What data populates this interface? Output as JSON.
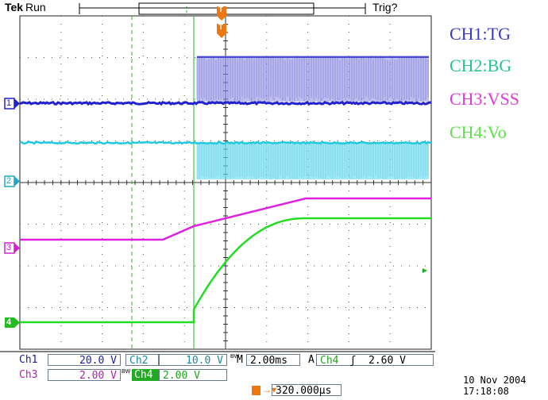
{
  "header": {
    "brand": "Tek",
    "status": "Run",
    "trigger_status": "Trig?"
  },
  "legend": [
    {
      "label": "CH1:TG",
      "color": "#3a3ac8"
    },
    {
      "label": "CH2:BG",
      "color": "#22c88a"
    },
    {
      "label": "CH3:VSS",
      "color": "#e03ad8"
    },
    {
      "label": "CH4:Vo",
      "color": "#5ee04a"
    }
  ],
  "markers": {
    "ch1": "1",
    "ch2": "2",
    "ch3": "3",
    "ch4": "4",
    "trigger": "T"
  },
  "colors": {
    "ch1": "#2222cc",
    "ch2": "#22c8e0",
    "ch3": "#e020e0",
    "ch4": "#22dd22",
    "grid": "#222222",
    "cursor": "#22bb22",
    "trigger": "#ee7711"
  },
  "readout": {
    "ch1_label": "Ch1",
    "ch1_scale": "20.0 V",
    "ch2_label": "Ch2",
    "ch2_scale": "10.0 V",
    "ch3_label": "Ch3",
    "ch3_scale": "2.00 V",
    "ch4_label": "Ch4",
    "ch4_scale": "2.00 V",
    "bw_mark": "BW",
    "timebase_label": "M",
    "timebase": "2.00ms",
    "trigger_mode": "A",
    "trigger_source": "Ch4",
    "trigger_slope": "ʃ",
    "trigger_level": "2.60 V",
    "trigger_position": "320.000µs",
    "date": "10 Nov 2004",
    "time": "17:18:08"
  }
}
